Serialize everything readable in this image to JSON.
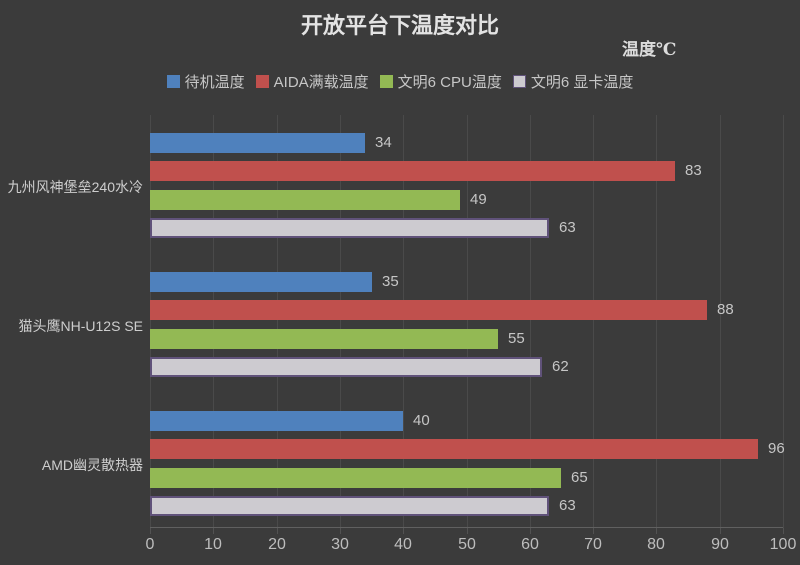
{
  "title": "开放平台下温度对比",
  "axis_unit_label": "温度℃",
  "colors": {
    "background": "#3B3B3B",
    "title_text": "#E3E3E3",
    "label_text": "#C6C6C6",
    "tick_text": "#BDBDBD",
    "gridline": "#4A4A4A",
    "axis_line": "#606060"
  },
  "chart_data": {
    "type": "bar",
    "orientation": "horizontal",
    "title": "开放平台下温度对比",
    "xlabel": "温度℃",
    "xlim": [
      0,
      100
    ],
    "xticks": [
      0,
      10,
      20,
      30,
      40,
      50,
      60,
      70,
      80,
      90,
      100
    ],
    "grid": true,
    "legend_position": "top",
    "categories": [
      "九州风神堡垒240水冷",
      "猫头鹰NH-U12S SE",
      "AMD幽灵散热器"
    ],
    "series": [
      {
        "name": "待机温度",
        "color": "#4F81BD",
        "values": [
          34,
          35,
          40
        ]
      },
      {
        "name": "AIDA满载温度",
        "color": "#C0504D",
        "values": [
          83,
          88,
          96
        ]
      },
      {
        "name": "文明6 CPU温度",
        "color": "#93B954",
        "values": [
          49,
          55,
          65
        ]
      },
      {
        "name": "文明6 显卡温度",
        "color": "#CDCBD0",
        "border_color": "#60527A",
        "values": [
          63,
          62,
          63
        ]
      }
    ]
  }
}
